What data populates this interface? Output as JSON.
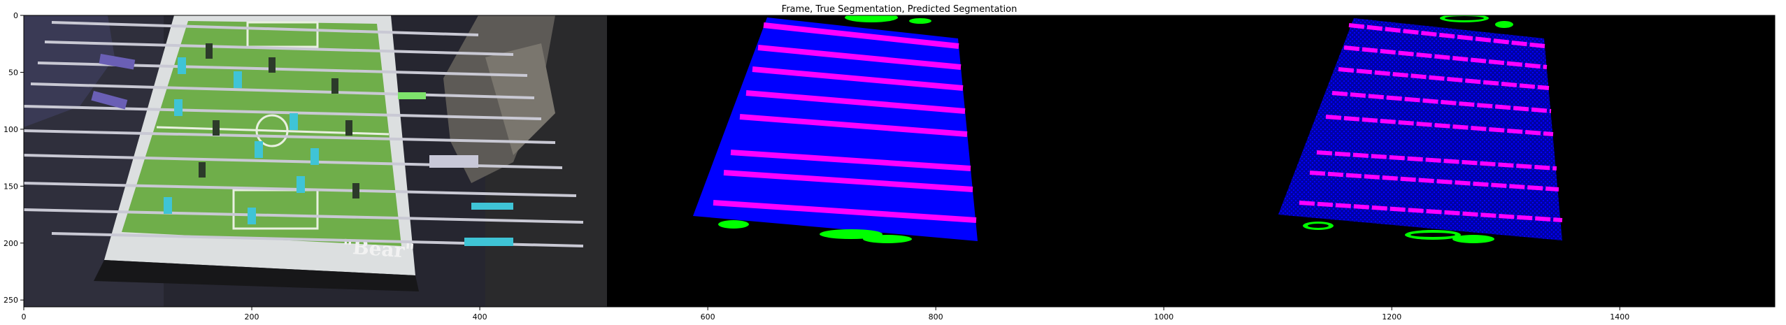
{
  "figure": {
    "title": "Frame, True Segmentation, Predicted Segmentation"
  },
  "axes": {
    "x_ticks": [
      0,
      200,
      400,
      600,
      800,
      1000,
      1200,
      1400
    ],
    "y_ticks": [
      0,
      50,
      100,
      150,
      200,
      250
    ],
    "x_range": [
      0,
      1536
    ],
    "y_range": [
      256,
      0
    ]
  },
  "panels": [
    {
      "name": "frame",
      "x_range": [
        0,
        512
      ]
    },
    {
      "name": "true-segmentation",
      "x_range": [
        512,
        1024
      ]
    },
    {
      "name": "predicted-segmentation",
      "x_range": [
        1024,
        1536
      ]
    }
  ],
  "frame_text": {
    "brand": "\"Bear\""
  },
  "colors": {
    "table_mask": "#0000ff",
    "rod_mask": "#ff00ff",
    "player_mask": "#00ff00",
    "background_mask": "#000000",
    "field_green": "#6fae4a",
    "player_cyan": "#3fc4d6"
  }
}
